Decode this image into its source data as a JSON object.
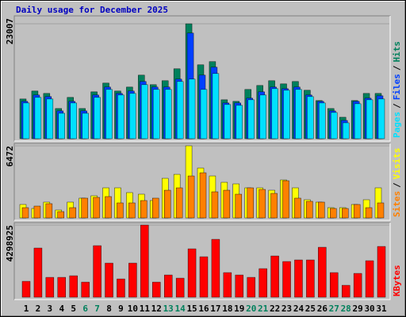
{
  "chart_data": [
    {
      "type": "bar",
      "title": "Daily usage for December 2025",
      "title_color": "#0000c0",
      "ylim": [
        0,
        23007
      ],
      "yticks": [
        23007
      ],
      "legend_separator": "/",
      "series": [
        {
          "name": "Hits",
          "color": "#00805c",
          "values": [
            7950,
            9540,
            9063,
            6042,
            8268,
            6042,
            9381,
            11130,
            9540,
            10335,
            12720,
            10812,
            11607,
            13992,
            23007,
            14787,
            15423,
            7791,
            7473,
            9858,
            10653,
            11607,
            10971,
            11448,
            9699,
            7632,
            6042,
            4293,
            7632,
            9063,
            9063
          ]
        },
        {
          "name": "Files",
          "color": "#0040ff",
          "values": [
            7473,
            8745,
            8427,
            5565,
            7473,
            5565,
            8745,
            10335,
            9063,
            9540,
            11448,
            10335,
            10335,
            11925,
            21147,
            12720,
            14310,
            7155,
            7155,
            8109,
            9381,
            10335,
            10017,
            10335,
            8745,
            7473,
            5565,
            3657,
            7473,
            8109,
            8586
          ]
        },
        {
          "name": "Pages",
          "color": "#00e0ff",
          "values": [
            7155,
            8268,
            7950,
            5088,
            7155,
            5088,
            8268,
            9858,
            8745,
            9063,
            10812,
            9858,
            9858,
            11448,
            11925,
            9858,
            13038,
            6837,
            6678,
            7791,
            8745,
            10017,
            9699,
            9858,
            8427,
            7155,
            5247,
            3180,
            6996,
            7791,
            7950
          ]
        }
      ]
    },
    {
      "type": "bar",
      "ylim": [
        0,
        6472
      ],
      "yticks": [
        6472
      ],
      "legend_separator": "/",
      "series": [
        {
          "name": "Visits",
          "color": "#ffff00",
          "values": [
            1209,
            853,
            1422,
            711,
            1422,
            1778,
            1991,
            2702,
            2702,
            2275,
            2133,
            1564,
            3555,
            3910,
            6472,
            4479,
            3768,
            3199,
            3057,
            2702,
            2702,
            2488,
            3412,
            2702,
            1635,
            1422,
            924,
            924,
            1209,
            1635,
            2702
          ]
        },
        {
          "name": "Sites",
          "color": "#ff8000",
          "values": [
            924,
            1066,
            1280,
            569,
            924,
            1778,
            1849,
            1920,
            1351,
            1351,
            1564,
            1778,
            2488,
            2702,
            3768,
            4053,
            2346,
            2488,
            2133,
            2702,
            2560,
            2204,
            3341,
            1778,
            1493,
            1422,
            853,
            853,
            1209,
            924,
            1351
          ]
        }
      ]
    },
    {
      "type": "bar",
      "ylim": [
        0,
        4298925
      ],
      "yticks": [
        4298925
      ],
      "categories": [
        "1",
        "2",
        "3",
        "4",
        "5",
        "6",
        "7",
        "8",
        "9",
        "10",
        "11",
        "12",
        "13",
        "14",
        "15",
        "16",
        "17",
        "18",
        "19",
        "20",
        "21",
        "22",
        "23",
        "24",
        "25",
        "26",
        "27",
        "28",
        "29",
        "30",
        "31"
      ],
      "category_colors": [
        "#000",
        "#000",
        "#000",
        "#000",
        "#000",
        "#00805c",
        "#00805c",
        "#000",
        "#000",
        "#000",
        "#000",
        "#000",
        "#00805c",
        "#00805c",
        "#000",
        "#000",
        "#000",
        "#000",
        "#000",
        "#00805c",
        "#00805c",
        "#000",
        "#000",
        "#000",
        "#000",
        "#000",
        "#00805c",
        "#00805c",
        "#000",
        "#000",
        "#000"
      ],
      "series": [
        {
          "name": "KBytes",
          "color": "#ff0000",
          "values": [
            944820,
            2928942,
            1181025,
            1181025,
            1275507,
            897579,
            3070665,
            2031363,
            1086543,
            2031363,
            4298925,
            897579,
            1322748,
            1133784,
            2881701,
            2409291,
            3448593,
            1464471,
            1322748,
            1181025,
            1700676,
            2456532,
            2125845,
            2220327,
            2220327,
            2976183,
            1464471,
            708615,
            1417230,
            2173086,
            3023424
          ]
        }
      ]
    }
  ]
}
